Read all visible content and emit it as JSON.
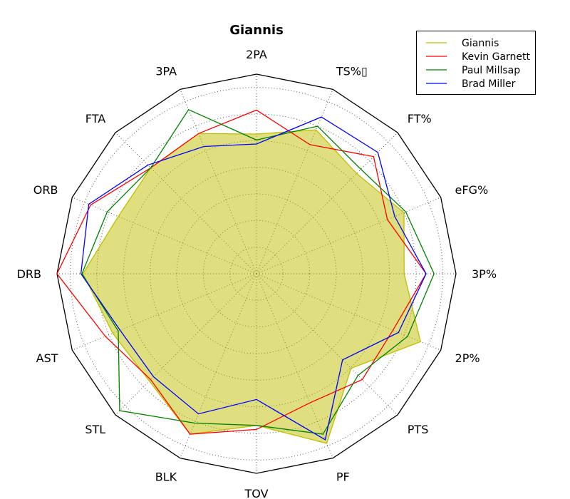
{
  "chart_data": {
    "type": "radar",
    "title": "Giannis",
    "axes": [
      "2PA",
      "TS%▯",
      "FT%",
      "eFG%",
      "3P%",
      "2P%",
      "PTS",
      "PF",
      "TOV",
      "BLK",
      "STL",
      "AST",
      "DRB",
      "ORB",
      "FTA",
      "3PA"
    ],
    "rlim": [
      0,
      1
    ],
    "grid": true,
    "legend_position": "top-right",
    "series": [
      {
        "name": "Giannis",
        "color": "#bfbf00",
        "fill": true,
        "values": [
          0.7,
          0.78,
          0.71,
          0.8,
          0.74,
          0.89,
          0.67,
          0.92,
          0.76,
          0.87,
          0.76,
          0.78,
          0.87,
          0.75,
          0.75,
          0.76
        ]
      },
      {
        "name": "Kevin Garnett",
        "color": "#ff0000",
        "fill": false,
        "values": [
          0.82,
          0.7,
          0.83,
          0.71,
          0.85,
          0.74,
          0.75,
          0.7,
          0.78,
          0.87,
          0.75,
          0.82,
          1.0,
          0.9,
          0.75,
          0.76
        ]
      },
      {
        "name": "Paul Millsap",
        "color": "#008000",
        "fill": false,
        "values": [
          0.67,
          0.8,
          0.74,
          0.81,
          0.89,
          0.82,
          0.72,
          0.87,
          0.76,
          0.81,
          0.97,
          0.75,
          0.875,
          0.81,
          0.75,
          0.89
        ]
      },
      {
        "name": "Brad Miller",
        "color": "#0000ff",
        "fill": false,
        "values": [
          0.65,
          0.85,
          0.86,
          0.75,
          0.85,
          0.77,
          0.61,
          0.9,
          0.63,
          0.76,
          0.73,
          0.74,
          0.88,
          0.91,
          0.77,
          0.69
        ]
      }
    ]
  }
}
